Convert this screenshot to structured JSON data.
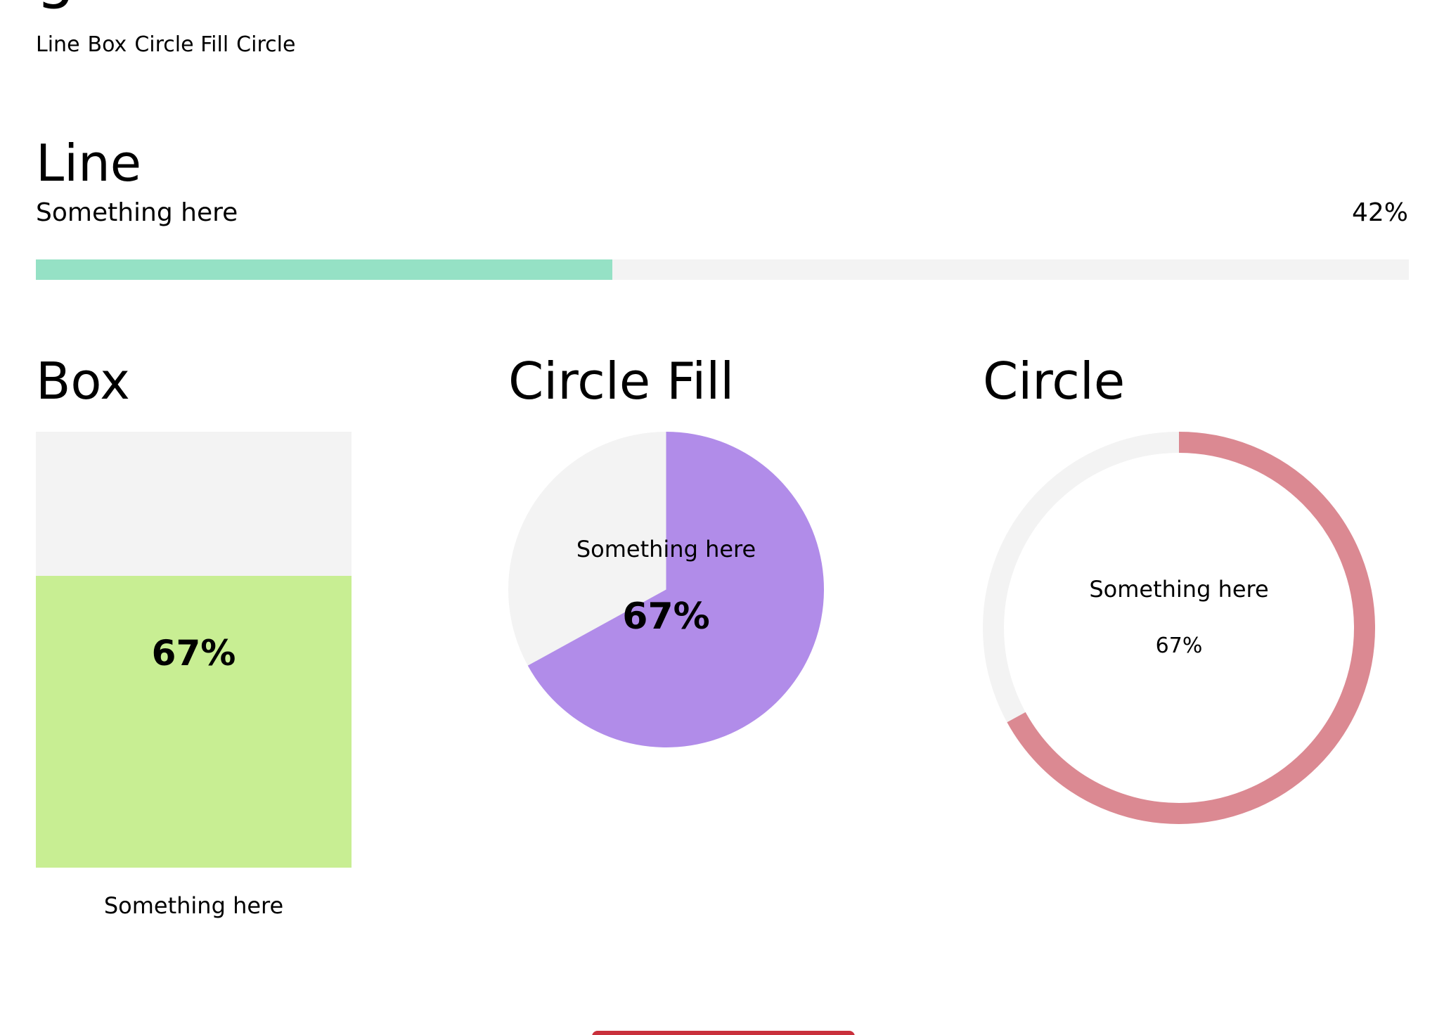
{
  "page": {
    "title_partial": "g"
  },
  "subnav": {
    "items": [
      "Line",
      "Box",
      "Circle Fill",
      "Circle"
    ]
  },
  "line": {
    "heading": "Line",
    "label": "Something here",
    "value_text": "42%",
    "progress": 0.42,
    "color": "#95e1c5"
  },
  "box": {
    "heading": "Box",
    "value_text": "67%",
    "caption": "Something here",
    "progress": 0.67,
    "color": "#c8ee93"
  },
  "circle_fill": {
    "heading": "Circle Fill",
    "caption": "Something here",
    "value_text": "67%",
    "progress": 0.67,
    "color": "#b18ce9"
  },
  "circle": {
    "heading": "Circle",
    "caption": "Something here",
    "value_text": "67%",
    "progress": 0.67,
    "color": "#db8992"
  },
  "colors": {
    "track": "#f3f3f3",
    "button": "#c9303c"
  }
}
